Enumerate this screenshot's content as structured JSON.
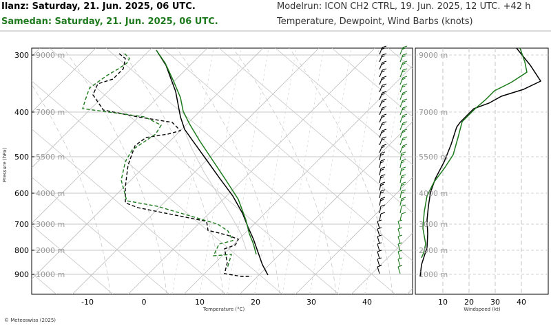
{
  "header": {
    "location_1": "Ilanz: Saturday, 21. Jun. 2025, 06 UTC.",
    "location_2": "Samedan: Saturday, 21. Jun. 2025, 06 UTC.",
    "model_run": "Modelrun: ICON CH2 CTRL, 19. Jun. 2025, 12 UTC. +42 h",
    "subtitle": "Temperature, Dewpoint, Wind Barbs (knots)"
  },
  "footer": {
    "copyright": "© Meteoswiss (2025)"
  },
  "colors": {
    "ilanz": "#000000",
    "samedan": "#1d7a1d",
    "grid": "#9a9a9a"
  },
  "chart_data": [
    {
      "type": "line",
      "name": "skew-t",
      "xlabel": "Temperature (°C)",
      "ylabel": "Pressure (hPa)",
      "x_ticks": [
        "-10",
        "0",
        "10",
        "20",
        "30",
        "40"
      ],
      "y_ticks": [
        "300",
        "400",
        "500",
        "600",
        "700",
        "800",
        "900"
      ],
      "altitude_labels": [
        "9000 m",
        "7000 m",
        "5500 m",
        "4000 m",
        "3000 m",
        "2000 m",
        "1000 m"
      ],
      "series": [
        {
          "name": "Ilanz temperature",
          "points": [
            [
              227,
              73
            ],
            [
              241,
              95
            ],
            [
              255,
              133
            ],
            [
              262,
              170
            ],
            [
              268,
              188
            ],
            [
              280,
              205
            ],
            [
              298,
              230
            ],
            [
              318,
              258
            ],
            [
              338,
              285
            ],
            [
              352,
              310
            ],
            [
              360,
              330
            ],
            [
              368,
              348
            ],
            [
              375,
              368
            ],
            [
              381,
              385
            ],
            [
              389,
              400
            ]
          ]
        },
        {
          "name": "Ilanz dewpoint",
          "points": [
            [
              173,
              78
            ],
            [
              182,
              85
            ],
            [
              179,
              100
            ],
            [
              164,
              115
            ],
            [
              142,
              122
            ],
            [
              135,
              138
            ],
            [
              150,
              160
            ],
            [
              200,
              170
            ],
            [
              250,
              178
            ],
            [
              262,
              190
            ],
            [
              244,
              195
            ],
            [
              212,
              200
            ],
            [
              196,
              212
            ],
            [
              186,
              240
            ],
            [
              184,
              255
            ],
            [
              182,
              272
            ],
            [
              182,
              295
            ],
            [
              200,
              302
            ],
            [
              250,
              312
            ],
            [
              300,
              322
            ],
            [
              302,
              335
            ],
            [
              330,
              342
            ],
            [
              346,
              348
            ],
            [
              342,
              356
            ],
            [
              326,
              362
            ],
            [
              330,
              382
            ],
            [
              326,
              398
            ],
            [
              350,
              402
            ],
            [
              365,
              402
            ]
          ]
        },
        {
          "name": "Samedan temperature",
          "points": [
            [
              227,
              73
            ],
            [
              240,
              92
            ],
            [
              252,
              118
            ],
            [
              262,
              142
            ],
            [
              266,
              162
            ],
            [
              275,
              180
            ],
            [
              290,
              205
            ],
            [
              308,
              232
            ],
            [
              328,
              262
            ],
            [
              346,
              290
            ],
            [
              357,
              320
            ],
            [
              362,
              340
            ],
            [
              368,
              355
            ],
            [
              372,
              370
            ]
          ]
        },
        {
          "name": "Samedan dewpoint",
          "points": [
            [
              181,
              78
            ],
            [
              188,
              85
            ],
            [
              184,
              92
            ],
            [
              172,
              100
            ],
            [
              155,
              110
            ],
            [
              130,
              128
            ],
            [
              124,
              145
            ],
            [
              120,
              158
            ],
            [
              158,
              163
            ],
            [
              210,
              170
            ],
            [
              234,
              182
            ],
            [
              226,
              195
            ],
            [
              192,
              218
            ],
            [
              182,
              235
            ],
            [
              176,
              262
            ],
            [
              184,
              292
            ],
            [
              228,
              300
            ],
            [
              276,
              314
            ],
            [
              316,
              326
            ],
            [
              331,
              336
            ],
            [
              338,
              350
            ],
            [
              318,
              355
            ],
            [
              310,
              372
            ],
            [
              336,
              370
            ],
            [
              330,
              390
            ]
          ]
        }
      ]
    },
    {
      "type": "line",
      "name": "windspeed profile",
      "xlabel": "Windspeed (kt)",
      "x_ticks": [
        "10",
        "20",
        "30",
        "40"
      ],
      "xlim": [
        0,
        45
      ],
      "altitude_labels": [
        "9000 m",
        "7000 m",
        "5500 m",
        "4000 m",
        "3000 m",
        "2000 m",
        "1000 m"
      ],
      "series": [
        {
          "name": "Ilanz windspeed",
          "points": [
            [
              750,
              70
            ],
            [
              770,
              95
            ],
            [
              785,
              118
            ],
            [
              760,
              130
            ],
            [
              728,
              140
            ],
            [
              710,
              150
            ],
            [
              688,
              158
            ],
            [
              668,
              178
            ],
            [
              663,
              185
            ],
            [
              655,
              210
            ],
            [
              645,
              235
            ],
            [
              632,
              260
            ],
            [
              625,
              280
            ],
            [
              622,
              300
            ],
            [
              620,
              320
            ],
            [
              621,
              340
            ],
            [
              620,
              360
            ],
            [
              612,
              385
            ],
            [
              610,
              402
            ]
          ]
        },
        {
          "name": "Samedan windspeed",
          "points": [
            [
              755,
              70
            ],
            [
              762,
              90
            ],
            [
              765,
              105
            ],
            [
              742,
              120
            ],
            [
              718,
              132
            ],
            [
              705,
              145
            ],
            [
              690,
              158
            ],
            [
              671,
              177
            ],
            [
              665,
              200
            ],
            [
              658,
              225
            ],
            [
              645,
              245
            ],
            [
              630,
              265
            ],
            [
              620,
              285
            ],
            [
              616,
              308
            ],
            [
              614,
              332
            ],
            [
              618,
              355
            ],
            [
              615,
              368
            ],
            [
              612,
              375
            ]
          ]
        }
      ]
    }
  ]
}
